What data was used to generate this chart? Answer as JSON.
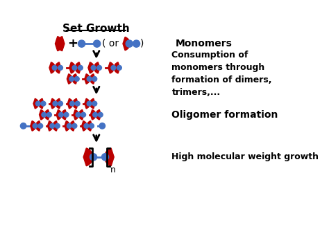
{
  "title": "Set Growth",
  "bg_color": "#ffffff",
  "red": "#bb0000",
  "blue": "#4472c4",
  "text_color": "#000000",
  "label_monomers": "Monomers",
  "label_consumption": "Consumption of\nmonomers through\nformation of dimers,\ntrimers,...",
  "label_oligomer": "Oligomer formation",
  "label_high_mw": "High molecular weight growth",
  "figw": 4.74,
  "figh": 3.51,
  "dpi": 100
}
